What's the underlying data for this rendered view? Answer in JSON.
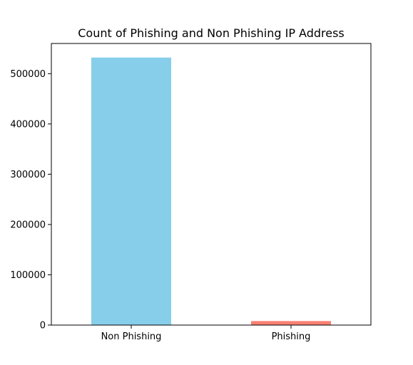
{
  "chart_data": {
    "type": "bar",
    "title": "Count of Phishing and Non Phishing IP Address",
    "xlabel": "",
    "ylabel": "",
    "categories": [
      "Non Phishing",
      "Phishing"
    ],
    "values": [
      532000,
      8000
    ],
    "ylim": [
      0,
      560000
    ],
    "yticks": [
      0,
      100000,
      200000,
      300000,
      400000,
      500000
    ],
    "ytick_labels": [
      "0",
      "100000",
      "200000",
      "300000",
      "400000",
      "500000"
    ],
    "colors": [
      "#87ceeb",
      "#fa8072"
    ],
    "grid": false,
    "legend": "none"
  }
}
